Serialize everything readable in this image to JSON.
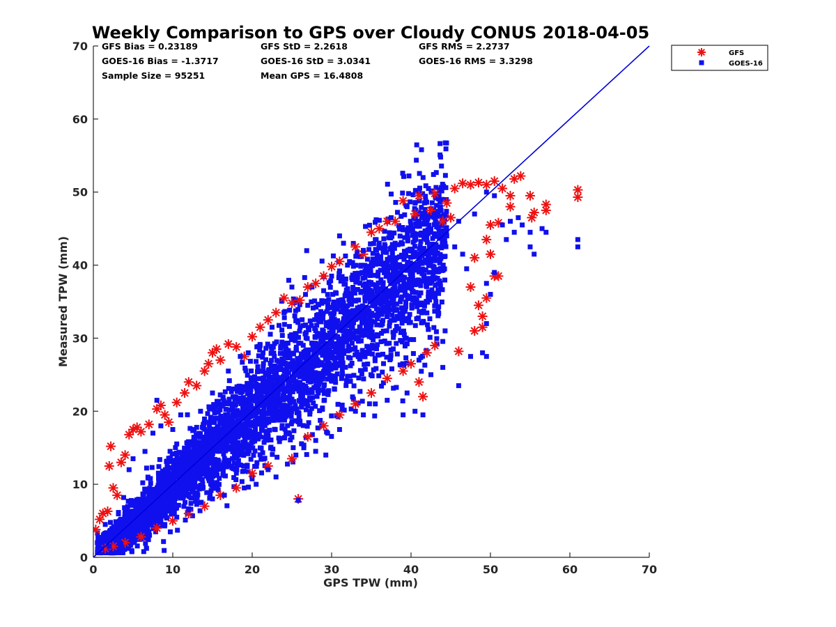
{
  "chart_data": {
    "type": "scatter",
    "title": "Weekly Comparison to GPS over Cloudy CONUS 2018-04-05",
    "xlabel": "GPS TPW (mm)",
    "ylabel": "Measured TPW (mm)",
    "xlim": [
      0,
      70
    ],
    "ylim": [
      0,
      70
    ],
    "xticks": [
      0,
      10,
      20,
      30,
      40,
      50,
      60,
      70
    ],
    "yticks": [
      0,
      10,
      20,
      30,
      40,
      50,
      60,
      70
    ],
    "grid": false,
    "legend_position": "outside-top-right",
    "reference_line": {
      "x": [
        0,
        70
      ],
      "y": [
        0,
        70
      ],
      "color": "#0000dd"
    },
    "stats": [
      [
        "GFS Bias = 0.23189",
        "GFS StD = 2.2618",
        "GFS RMS = 2.2737"
      ],
      [
        "GOES-16 Bias = -1.3717",
        "GOES-16 StD = 3.0341",
        "GOES-16 RMS = 3.3298"
      ],
      [
        "Sample Size = 95251",
        "Mean GPS = 16.4808",
        ""
      ]
    ],
    "series": [
      {
        "name": "GFS",
        "marker": "asterisk",
        "color": "#ee1111",
        "points": [
          [
            0.3,
            3.8
          ],
          [
            0.8,
            5.2
          ],
          [
            1.2,
            6.0
          ],
          [
            1.8,
            6.3
          ],
          [
            2.2,
            15.2
          ],
          [
            2.0,
            12.5
          ],
          [
            2.5,
            9.5
          ],
          [
            3.0,
            8.5
          ],
          [
            3.5,
            13.0
          ],
          [
            4.0,
            14.0
          ],
          [
            4.5,
            16.8
          ],
          [
            5.0,
            17.5
          ],
          [
            5.5,
            17.8
          ],
          [
            6.0,
            17.2
          ],
          [
            7.0,
            18.2
          ],
          [
            8.0,
            20.3
          ],
          [
            8.5,
            20.8
          ],
          [
            9.0,
            19.5
          ],
          [
            9.5,
            18.5
          ],
          [
            10.5,
            21.2
          ],
          [
            11.5,
            22.5
          ],
          [
            12.0,
            24.0
          ],
          [
            13.0,
            23.5
          ],
          [
            14.0,
            25.5
          ],
          [
            14.5,
            26.5
          ],
          [
            15.0,
            28.0
          ],
          [
            15.5,
            28.5
          ],
          [
            16.0,
            27.0
          ],
          [
            17.0,
            29.2
          ],
          [
            18.0,
            28.8
          ],
          [
            19.0,
            27.5
          ],
          [
            20.0,
            30.2
          ],
          [
            21.0,
            31.5
          ],
          [
            22.0,
            32.5
          ],
          [
            23.0,
            33.5
          ],
          [
            24.0,
            35.5
          ],
          [
            25.0,
            34.8
          ],
          [
            26.0,
            35.2
          ],
          [
            27.0,
            37.0
          ],
          [
            28.0,
            37.5
          ],
          [
            29.0,
            38.5
          ],
          [
            30.0,
            39.8
          ],
          [
            31.0,
            40.5
          ],
          [
            33.0,
            42.5
          ],
          [
            35.0,
            44.5
          ],
          [
            37.0,
            46.0
          ],
          [
            39.0,
            48.8
          ],
          [
            41.0,
            49.5
          ],
          [
            43.0,
            49.8
          ],
          [
            44.5,
            48.5
          ],
          [
            45.5,
            50.5
          ],
          [
            46.5,
            51.2
          ],
          [
            47.5,
            51.0
          ],
          [
            48.5,
            51.3
          ],
          [
            49.5,
            51.0
          ],
          [
            50.5,
            51.5
          ],
          [
            51.5,
            50.5
          ],
          [
            52.5,
            49.5
          ],
          [
            53.0,
            51.8
          ],
          [
            53.8,
            52.2
          ],
          [
            55.0,
            49.5
          ],
          [
            55.5,
            47.2
          ],
          [
            57.0,
            48.3
          ],
          [
            57.0,
            47.5
          ],
          [
            61.0,
            50.3
          ],
          [
            61.0,
            49.3
          ],
          [
            55.2,
            46.5
          ],
          [
            52.5,
            48.0
          ],
          [
            51.0,
            45.8
          ],
          [
            50.0,
            45.5
          ],
          [
            49.5,
            43.5
          ],
          [
            48.0,
            41.0
          ],
          [
            50.0,
            41.5
          ],
          [
            50.5,
            38.5
          ],
          [
            51.0,
            38.5
          ],
          [
            49.5,
            35.5
          ],
          [
            48.5,
            34.5
          ],
          [
            47.5,
            37.0
          ],
          [
            48.0,
            31.0
          ],
          [
            49.0,
            33.0
          ],
          [
            49.0,
            31.5
          ],
          [
            46.0,
            28.2
          ],
          [
            43.0,
            29.0
          ],
          [
            42.0,
            28.0
          ],
          [
            41.5,
            22.0
          ],
          [
            41.0,
            24.0
          ],
          [
            40.0,
            26.5
          ],
          [
            39.0,
            25.5
          ],
          [
            37.0,
            24.5
          ],
          [
            35.0,
            22.5
          ],
          [
            33.0,
            21.0
          ],
          [
            31.0,
            19.5
          ],
          [
            29.0,
            18.0
          ],
          [
            27.0,
            16.5
          ],
          [
            25.8,
            8.0
          ],
          [
            25.0,
            13.5
          ],
          [
            22.0,
            12.5
          ],
          [
            20.0,
            11.5
          ],
          [
            18.0,
            9.5
          ],
          [
            16.0,
            8.5
          ],
          [
            14.0,
            7.0
          ],
          [
            12.0,
            6.0
          ],
          [
            10.0,
            5.0
          ],
          [
            8.0,
            4.0
          ],
          [
            6.0,
            2.8
          ],
          [
            4.0,
            2.0
          ],
          [
            2.5,
            1.5
          ],
          [
            1.5,
            1.2
          ],
          [
            44.0,
            46.0
          ],
          [
            42.5,
            47.5
          ],
          [
            45.0,
            46.5
          ],
          [
            40.5,
            47.0
          ],
          [
            38.0,
            46.0
          ],
          [
            36.0,
            45.0
          ],
          [
            34.0,
            41.5
          ]
        ]
      },
      {
        "name": "GOES-16",
        "marker": "square",
        "color": "#1010ee",
        "points": [
          [
            31.0,
            44.0
          ],
          [
            31.5,
            43.0
          ],
          [
            37.5,
            46.5
          ],
          [
            39.5,
            48.0
          ],
          [
            40.5,
            48.5
          ],
          [
            43.0,
            47.0
          ],
          [
            46.0,
            46.0
          ],
          [
            48.0,
            47.0
          ],
          [
            49.5,
            50.0
          ],
          [
            50.5,
            49.5
          ],
          [
            51.5,
            45.5
          ],
          [
            52.5,
            46.0
          ],
          [
            53.5,
            46.5
          ],
          [
            54.0,
            45.5
          ],
          [
            55.0,
            44.5
          ],
          [
            56.5,
            45.0
          ],
          [
            57.0,
            44.5
          ],
          [
            53.0,
            44.5
          ],
          [
            52.0,
            43.5
          ],
          [
            55.0,
            42.5
          ],
          [
            55.5,
            41.5
          ],
          [
            61.0,
            43.5
          ],
          [
            61.0,
            42.5
          ],
          [
            50.5,
            39.0
          ],
          [
            49.5,
            37.5
          ],
          [
            50.0,
            36.0
          ],
          [
            49.5,
            32.0
          ],
          [
            49.0,
            28.0
          ],
          [
            49.5,
            27.5
          ],
          [
            47.5,
            27.5
          ],
          [
            46.0,
            23.5
          ],
          [
            44.0,
            26.0
          ],
          [
            41.0,
            27.0
          ],
          [
            42.5,
            25.0
          ],
          [
            41.5,
            19.5
          ],
          [
            40.5,
            20.0
          ],
          [
            39.0,
            19.5
          ],
          [
            39.5,
            22.5
          ],
          [
            37.0,
            21.5
          ],
          [
            35.5,
            21.0
          ],
          [
            34.0,
            19.5
          ],
          [
            33.0,
            20.0
          ],
          [
            31.0,
            17.5
          ],
          [
            29.5,
            17.0
          ],
          [
            28.0,
            16.0
          ],
          [
            26.5,
            15.0
          ],
          [
            25.5,
            14.0
          ],
          [
            25.8,
            7.8
          ],
          [
            23.0,
            11.0
          ],
          [
            22.0,
            12.0
          ],
          [
            20.5,
            10.0
          ],
          [
            19.0,
            9.5
          ],
          [
            16.5,
            8.5
          ],
          [
            15.0,
            8.0
          ],
          [
            13.5,
            7.5
          ],
          [
            12.0,
            6.5
          ],
          [
            10.5,
            5.5
          ],
          [
            9.0,
            4.5
          ],
          [
            7.0,
            3.5
          ],
          [
            5.0,
            2.5
          ],
          [
            3.5,
            1.8
          ],
          [
            2.0,
            1.5
          ],
          [
            1.0,
            1.2
          ],
          [
            0.5,
            2.0
          ],
          [
            1.5,
            4.5
          ],
          [
            4.5,
            12.0
          ],
          [
            5.0,
            13.5
          ],
          [
            6.5,
            14.5
          ],
          [
            7.5,
            17.0
          ],
          [
            8.5,
            18.0
          ],
          [
            8.0,
            21.5
          ],
          [
            10.0,
            17.5
          ],
          [
            11.0,
            19.5
          ],
          [
            13.5,
            20.0
          ],
          [
            15.0,
            22.5
          ],
          [
            17.0,
            25.5
          ],
          [
            18.5,
            27.5
          ],
          [
            19.5,
            28.0
          ],
          [
            21.0,
            29.0
          ],
          [
            22.5,
            31.5
          ],
          [
            24.0,
            33.5
          ],
          [
            25.0,
            37.0
          ],
          [
            27.0,
            34.5
          ],
          [
            29.0,
            36.5
          ],
          [
            30.0,
            38.5
          ],
          [
            32.0,
            40.0
          ],
          [
            34.0,
            42.0
          ],
          [
            35.5,
            43.5
          ],
          [
            36.0,
            41.0
          ],
          [
            38.0,
            43.0
          ],
          [
            42.0,
            44.5
          ],
          [
            44.5,
            44.0
          ],
          [
            45.5,
            42.5
          ],
          [
            46.5,
            41.5
          ],
          [
            47.0,
            39.5
          ]
        ]
      }
    ]
  }
}
